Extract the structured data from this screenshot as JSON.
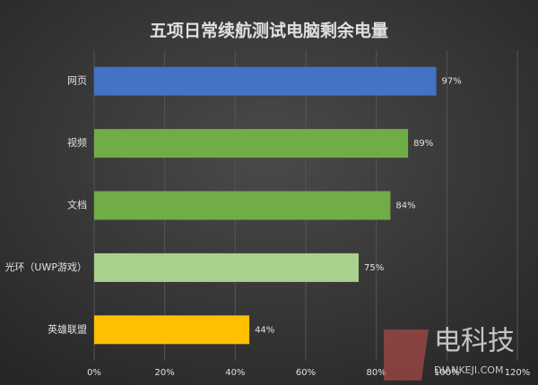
{
  "chart_data": {
    "type": "barh",
    "title": "五项日常续航测试电脑剩余电量",
    "categories": [
      "网页",
      "视频",
      "文档",
      "光环（UWP游戏）",
      "英雄联盟"
    ],
    "values": [
      97,
      89,
      84,
      75,
      44
    ],
    "value_labels": [
      "97%",
      "89%",
      "84%",
      "75%",
      "44%"
    ],
    "colors": [
      "#4472c4",
      "#70ad47",
      "#70ad47",
      "#a9d18e",
      "#ffc000"
    ],
    "xlim": [
      0,
      120
    ],
    "xticks": [
      {
        "value": 0,
        "label": "0%"
      },
      {
        "value": 20,
        "label": "20%"
      },
      {
        "value": 40,
        "label": "40%"
      },
      {
        "value": 60,
        "label": "60%"
      },
      {
        "value": 80,
        "label": "80%"
      },
      {
        "value": 100,
        "label": "100%"
      },
      {
        "value": 120,
        "label": "120%"
      }
    ],
    "grid": true
  },
  "watermark": {
    "name": "电科技",
    "url": "DIANKEJI.COM"
  }
}
